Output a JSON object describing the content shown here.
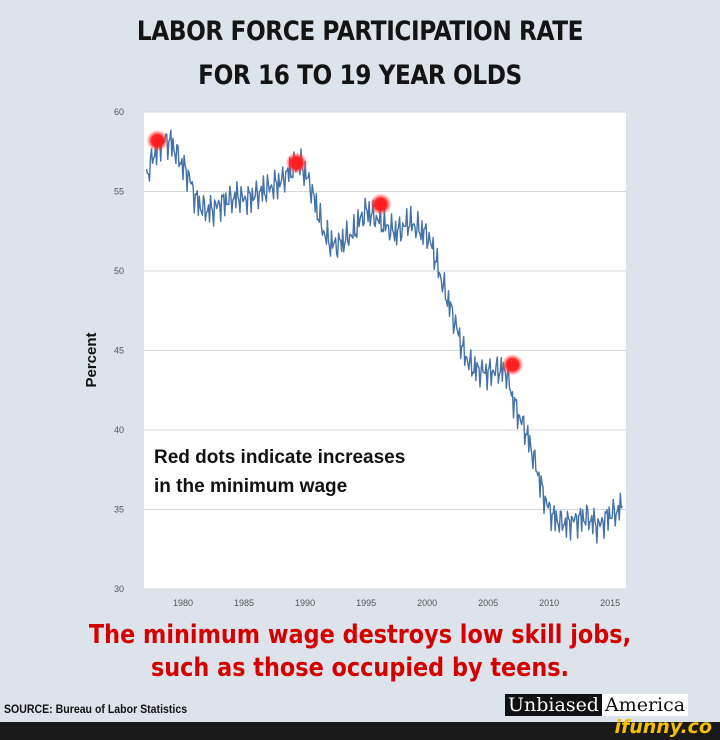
{
  "title_line1": "LABOR FORCE PARTICIPATION RATE",
  "title_line2": "FOR 16 TO 19 YEAR OLDS",
  "caption_line1": "The minimum wage destroys low skill jobs,",
  "caption_line2": "such as those occupied by teens.",
  "source": "SOURCE: Bureau of Labor Statistics",
  "brand_part1": "Unbiased",
  "brand_part2": "America",
  "watermark": "ifunny.co",
  "colors": {
    "line": "#4472a8",
    "marker": "#ff0000",
    "caption": "#d40000",
    "watermark": "#f5c000"
  },
  "chart_data": {
    "type": "line",
    "title": "",
    "xlabel": "",
    "ylabel": "Percent",
    "xlim": [
      1976.8,
      2016.3
    ],
    "ylim": [
      30,
      60
    ],
    "x_ticks": [
      "1980",
      "1985",
      "1990",
      "1995",
      "2000",
      "2005",
      "2010",
      "2015"
    ],
    "y_ticks": [
      "60",
      "55",
      "50",
      "45",
      "40",
      "35",
      "30"
    ],
    "grid": true,
    "annotation": [
      "Red dots indicate increases",
      "in the minimum wage"
    ],
    "series": [
      {
        "x": [
          1977.0,
          1977.5,
          1978.0,
          1978.5,
          1979.0,
          1979.5,
          1980.0,
          1980.5,
          1981.0,
          1981.5,
          1982.0,
          1982.5,
          1983.0,
          1983.5,
          1984.0,
          1984.5,
          1985.0,
          1985.5,
          1986.0,
          1986.5,
          1987.0,
          1987.5,
          1988.0,
          1988.5,
          1989.0,
          1989.5,
          1990.0,
          1990.5,
          1991.0,
          1991.5,
          1992.0,
          1992.5,
          1993.0,
          1993.5,
          1994.0,
          1994.5,
          1995.0,
          1995.5,
          1996.0,
          1996.5,
          1997.0,
          1997.5,
          1998.0,
          1998.5,
          1999.0,
          1999.5,
          2000.0,
          2000.5,
          2001.0,
          2001.5,
          2002.0,
          2002.5,
          2003.0,
          2003.5,
          2004.0,
          2004.5,
          2005.0,
          2005.5,
          2006.0,
          2006.5,
          2007.0,
          2007.5,
          2008.0,
          2008.5,
          2009.0,
          2009.5,
          2010.0,
          2010.5,
          2011.0,
          2011.5,
          2012.0,
          2012.5,
          2013.0,
          2013.5,
          2014.0,
          2014.5,
          2015.0,
          2015.5,
          2016.0
        ],
        "values": [
          55.9,
          57.1,
          57.9,
          58.2,
          58.1,
          57.3,
          56.6,
          55.9,
          54.6,
          54.0,
          53.8,
          53.9,
          54.2,
          54.4,
          54.5,
          54.7,
          54.5,
          54.6,
          54.8,
          55.0,
          55.2,
          55.4,
          55.6,
          56.1,
          56.4,
          56.8,
          56.2,
          55.2,
          53.8,
          52.5,
          51.8,
          51.6,
          51.8,
          52.1,
          52.4,
          53.2,
          53.8,
          53.5,
          53.2,
          52.9,
          52.6,
          52.4,
          52.7,
          53.1,
          52.8,
          52.5,
          52.3,
          51.3,
          49.9,
          48.6,
          47.5,
          46.2,
          44.9,
          44.1,
          43.8,
          43.7,
          43.6,
          43.7,
          43.8,
          43.6,
          42.0,
          40.9,
          40.1,
          38.9,
          37.5,
          36.0,
          35.0,
          34.4,
          34.2,
          34.1,
          34.3,
          34.4,
          34.5,
          34.3,
          33.9,
          34.3,
          34.7,
          34.8,
          35.2
        ]
      }
    ],
    "markers": [
      {
        "x": 1977.9,
        "y": 58.2
      },
      {
        "x": 1989.3,
        "y": 56.8
      },
      {
        "x": 1996.2,
        "y": 54.2
      },
      {
        "x": 2007.0,
        "y": 44.1
      }
    ]
  }
}
